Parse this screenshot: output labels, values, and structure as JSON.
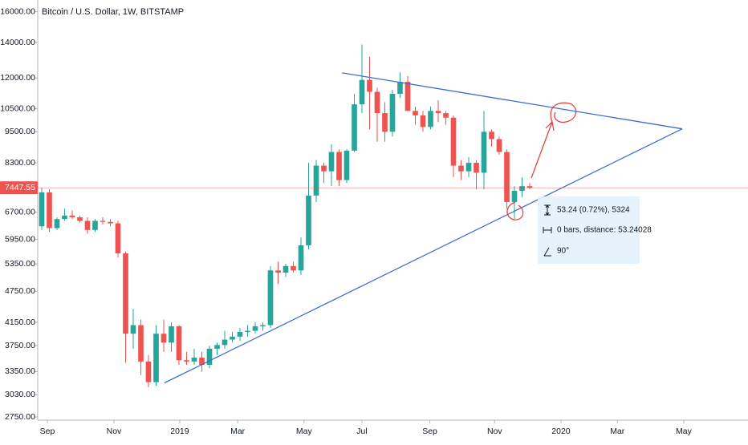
{
  "chart_data": {
    "type": "candlestick",
    "title": "Bitcoin / U.S. Dollar, 1W, BITSTAMP",
    "log": true,
    "up_color": "#26a69a",
    "down_color": "#ef5350",
    "open": [
      6300,
      7300,
      6250,
      6500,
      6600,
      6550,
      6450,
      6200,
      6450,
      6420,
      6380,
      5600,
      3950,
      4100,
      3500,
      3200,
      3950,
      3800,
      4080,
      3520,
      3500,
      3560,
      3450,
      3700,
      3760,
      3850,
      3900,
      3980,
      4000,
      4080,
      4100,
      5200,
      5150,
      5300,
      5200,
      5800,
      7200,
      8200,
      8000,
      8700,
      7700,
      8750,
      10700,
      11900,
      11300,
      10300,
      9500,
      11200,
      11800,
      10400,
      10200,
      9700,
      10400,
      10300,
      10100,
      8200,
      8000,
      8300,
      7950,
      9500,
      9200,
      8700,
      7000,
      7350,
      7500
    ],
    "high": [
      7450,
      7400,
      6550,
      6800,
      6750,
      6600,
      6550,
      6500,
      6550,
      6500,
      6450,
      5650,
      4400,
      4200,
      3600,
      4100,
      4200,
      4150,
      4100,
      3650,
      3700,
      3650,
      3750,
      3800,
      4000,
      3980,
      4050,
      4100,
      4150,
      4150,
      5300,
      5400,
      5350,
      5400,
      6000,
      8300,
      8400,
      8300,
      9000,
      8800,
      8800,
      11200,
      13880,
      13150,
      11500,
      10800,
      11400,
      12300,
      12100,
      10600,
      10400,
      10600,
      10900,
      10400,
      10200,
      8400,
      8500,
      8400,
      10400,
      9600,
      9300,
      8800,
      7500,
      7800,
      7600
    ],
    "low": [
      6200,
      6150,
      6200,
      6450,
      6500,
      6400,
      6100,
      6150,
      6350,
      6300,
      5500,
      3480,
      3700,
      3300,
      3130,
      3150,
      3650,
      3650,
      3450,
      3450,
      3450,
      3350,
      3400,
      3600,
      3700,
      3800,
      3830,
      3900,
      3950,
      4000,
      4050,
      4900,
      5050,
      5150,
      5100,
      5700,
      7000,
      7600,
      7500,
      7500,
      7600,
      8700,
      10300,
      9600,
      9100,
      9100,
      9300,
      11000,
      10400,
      9800,
      9500,
      9600,
      9900,
      9800,
      7800,
      7700,
      7800,
      7400,
      7400,
      8900,
      8600,
      6800,
      6500,
      7150,
      7400
    ],
    "close": [
      7300,
      6250,
      6500,
      6600,
      6550,
      6450,
      6200,
      6450,
      6420,
      6380,
      5600,
      3950,
      4100,
      3500,
      3200,
      3950,
      3800,
      4080,
      3520,
      3500,
      3560,
      3450,
      3700,
      3760,
      3850,
      3900,
      3980,
      4000,
      4080,
      4100,
      5200,
      5150,
      5300,
      5200,
      5800,
      7200,
      8200,
      8000,
      8700,
      7700,
      8750,
      10700,
      11900,
      11300,
      10300,
      9500,
      11200,
      11800,
      10400,
      10200,
      9700,
      10400,
      10300,
      10100,
      8200,
      8000,
      8300,
      7950,
      9500,
      9200,
      8700,
      7000,
      7350,
      7500,
      7447.55
    ],
    "last_price": 7447.55,
    "ylim": [
      2713,
      16840
    ],
    "yticks": [
      {
        "value": 16000,
        "label": "16000.00"
      },
      {
        "value": 14000,
        "label": "14000.00"
      },
      {
        "value": 12000,
        "label": "12000.00"
      },
      {
        "value": 10500,
        "label": "10500.00"
      },
      {
        "value": 9500,
        "label": "9500.00"
      },
      {
        "value": 8300,
        "label": "8300.00"
      },
      {
        "value": 6700,
        "label": "6700.00"
      },
      {
        "value": 5950,
        "label": "5950.00"
      },
      {
        "value": 5350,
        "label": "5350.00"
      },
      {
        "value": 4750,
        "label": "4750.00"
      },
      {
        "value": 4150,
        "label": "4150.00"
      },
      {
        "value": 3750,
        "label": "3750.00"
      },
      {
        "value": 3350,
        "label": "3350.00"
      },
      {
        "value": 3030,
        "label": "3030.00"
      },
      {
        "value": 2750,
        "label": "2750.00"
      }
    ],
    "xlim": [
      -0.42,
      92.63
    ],
    "xticks": [
      {
        "value": 0.74,
        "label": "Sep"
      },
      {
        "value": 9.47,
        "label": "Nov"
      },
      {
        "value": 18.1,
        "label": "2019"
      },
      {
        "value": 25.7,
        "label": "Mar"
      },
      {
        "value": 34.4,
        "label": "May"
      },
      {
        "value": 42,
        "label": "Jul"
      },
      {
        "value": 50.9,
        "label": "Sep"
      },
      {
        "value": 59.4,
        "label": "Nov"
      },
      {
        "value": 68.1,
        "label": "2020"
      },
      {
        "value": 75.5,
        "label": "Mar"
      },
      {
        "value": 84.2,
        "label": "May"
      }
    ],
    "trendlines": [
      {
        "x": [
          39.4,
          84
        ],
        "y": [
          12270,
          9620
        ],
        "color": "#3a6fd0"
      },
      {
        "x": [
          16.1,
          84
        ],
        "y": [
          3190,
          9620
        ],
        "color": "#3a6fd0"
      }
    ],
    "measure": {
      "lines": [
        "53.24 (0.72%), 5324",
        "0 bars, distance: 53.24028",
        "90°"
      ]
    }
  }
}
